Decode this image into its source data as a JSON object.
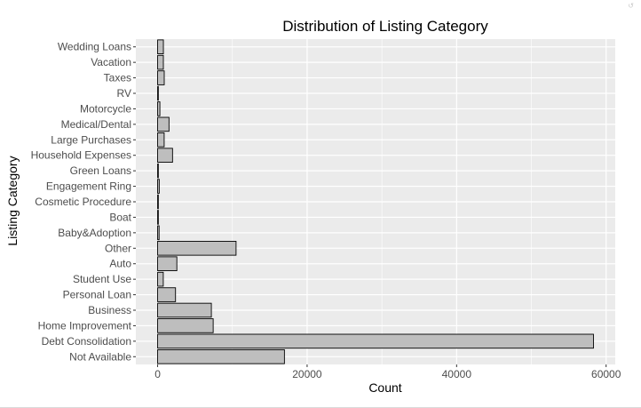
{
  "chart_data": {
    "type": "bar",
    "orientation": "horizontal",
    "title": "Distribution of Listing Category",
    "xlabel": "Count",
    "ylabel": "Listing Category",
    "categories": [
      "Not Available",
      "Debt Consolidation",
      "Home Improvement",
      "Business",
      "Personal Loan",
      "Student Use",
      "Auto",
      "Other",
      "Baby&Adoption",
      "Boat",
      "Cosmetic Procedure",
      "Engagement Ring",
      "Green Loans",
      "Household Expenses",
      "Large Purchases",
      "Medical/Dental",
      "Motorcycle",
      "RV",
      "Taxes",
      "Vacation",
      "Wedding Loans"
    ],
    "values": [
      16965,
      58308,
      7433,
      7189,
      2395,
      756,
      2572,
      10494,
      199,
      85,
      91,
      217,
      59,
      1996,
      876,
      1522,
      304,
      52,
      885,
      768,
      771
    ],
    "xlim": [
      -2915,
      61223
    ],
    "x_ticks": [
      0,
      20000,
      40000,
      60000
    ],
    "x_tick_labels": [
      "0",
      "20000",
      "40000",
      "60000"
    ],
    "grid": true,
    "legend": "none",
    "colors": {
      "panel_background": "#ebebeb",
      "grid_major": "#ffffff",
      "bar_fill": "#bebebe",
      "bar_stroke": "#000000"
    }
  },
  "corner_glyph": "↺"
}
